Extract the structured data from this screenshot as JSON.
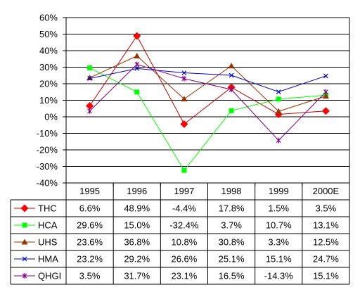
{
  "chart_data": {
    "type": "line",
    "categories": [
      "1995",
      "1996",
      "1997",
      "1998",
      "1999",
      "2000E"
    ],
    "ylim": [
      -40,
      60
    ],
    "ytick_step": 10,
    "yticks": [
      "60%",
      "50%",
      "40%",
      "30%",
      "20%",
      "10%",
      "0%",
      "-10%",
      "-20%",
      "-30%",
      "-40%"
    ],
    "grid": true,
    "legend": "data-table-below",
    "series": [
      {
        "name": "THC",
        "color": "#ff0000",
        "line_color": "#c00000",
        "marker": "diamond",
        "values": [
          6.6,
          48.9,
          -4.4,
          17.8,
          1.5,
          3.5
        ],
        "labels": [
          "6.6%",
          "48.9%",
          "-4.4%",
          "17.8%",
          "1.5%",
          "3.5%"
        ]
      },
      {
        "name": "HCA",
        "color": "#00ff00",
        "line_color": "#00ff00",
        "marker": "square",
        "values": [
          29.6,
          15.0,
          -32.4,
          3.7,
          10.7,
          13.1
        ],
        "labels": [
          "29.6%",
          "15.0%",
          "-32.4%",
          "3.7%",
          "10.7%",
          "13.1%"
        ]
      },
      {
        "name": "UHS",
        "color": "#993300",
        "line_color": "#993300",
        "marker": "triangle",
        "values": [
          23.6,
          36.8,
          10.8,
          30.8,
          3.3,
          12.5
        ],
        "labels": [
          "23.6%",
          "36.8%",
          "10.8%",
          "30.8%",
          "3.3%",
          "12.5%"
        ]
      },
      {
        "name": "HMA",
        "color": "#0000cc",
        "line_color": "#0000cc",
        "marker": "x",
        "values": [
          23.2,
          29.2,
          26.6,
          25.1,
          15.1,
          24.7
        ],
        "labels": [
          "23.2%",
          "29.2%",
          "26.6%",
          "25.1%",
          "15.1%",
          "24.7%"
        ]
      },
      {
        "name": "QHGI",
        "color": "#800080",
        "line_color": "#800080",
        "marker": "star",
        "values": [
          3.5,
          31.7,
          23.1,
          16.5,
          -14.3,
          15.1
        ],
        "labels": [
          "3.5%",
          "31.7%",
          "23.1%",
          "16.5%",
          "-14.3%",
          "15.1%"
        ]
      }
    ]
  }
}
